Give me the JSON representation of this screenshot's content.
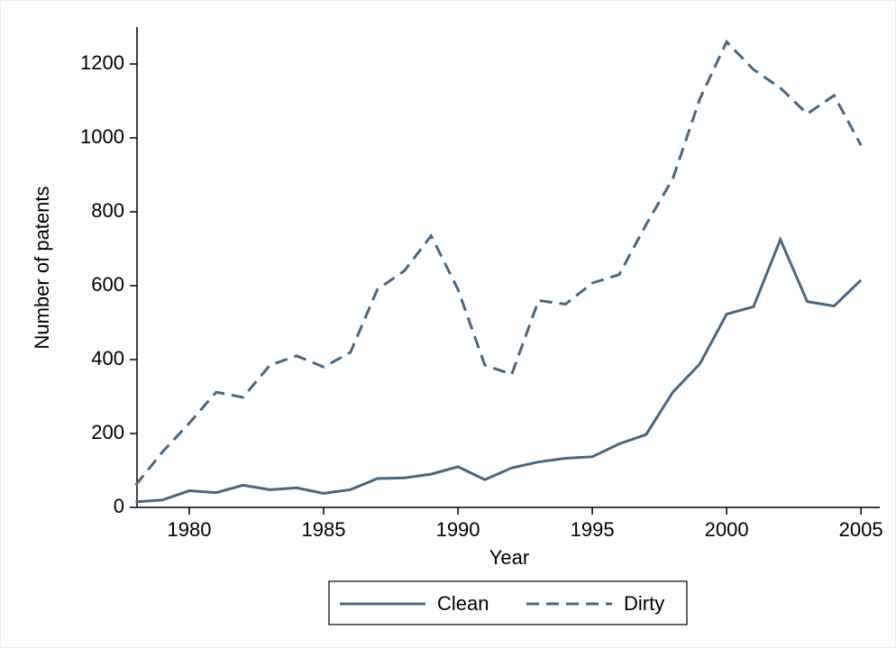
{
  "chart_data": {
    "type": "line",
    "x_label": "Year",
    "y_label": "Number of patents",
    "x": [
      1978,
      1979,
      1980,
      1981,
      1982,
      1983,
      1984,
      1985,
      1986,
      1987,
      1988,
      1989,
      1990,
      1991,
      1992,
      1993,
      1994,
      1995,
      1996,
      1997,
      1998,
      1999,
      2000,
      2001,
      2002,
      2003,
      2004,
      2005
    ],
    "series": [
      {
        "name": "Clean",
        "color": "#4a6781",
        "dash": "solid",
        "values": [
          15,
          20,
          45,
          40,
          60,
          48,
          53,
          38,
          48,
          78,
          80,
          90,
          110,
          75,
          107,
          123,
          133,
          137,
          172,
          197,
          312,
          388,
          523,
          543,
          725,
          557,
          545,
          615
        ]
      },
      {
        "name": "Dirty",
        "color": "#4a6781",
        "dash": "dashed",
        "values": [
          60,
          150,
          228,
          312,
          298,
          385,
          410,
          380,
          420,
          590,
          640,
          735,
          590,
          385,
          360,
          560,
          550,
          607,
          630,
          765,
          890,
          1105,
          1260,
          1185,
          1135,
          1065,
          1115,
          980
        ]
      }
    ],
    "xlim": [
      1978,
      2005.7
    ],
    "xticks": [
      1980,
      1985,
      1990,
      1995,
      2000,
      2005
    ],
    "ylim": [
      0,
      1300
    ],
    "yticks": [
      0,
      200,
      400,
      600,
      800,
      1000,
      1200
    ],
    "legend": "bottom"
  }
}
